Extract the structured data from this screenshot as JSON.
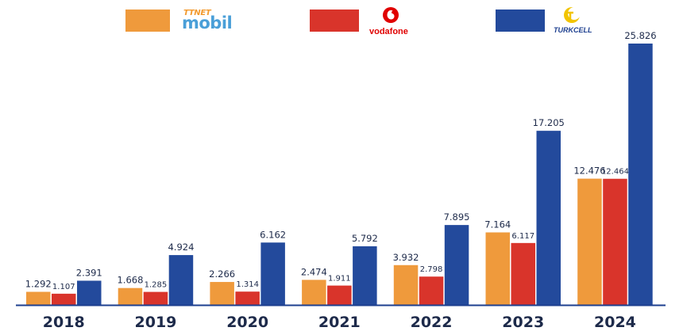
{
  "chart_data": {
    "type": "bar",
    "categories": [
      "2018",
      "2019",
      "2020",
      "2021",
      "2022",
      "2023",
      "2024"
    ],
    "series": [
      {
        "name": "TTNET mobil",
        "color": "#ef9a3c",
        "values": [
          1292,
          1668,
          2266,
          2474,
          3932,
          7164,
          12476
        ],
        "labels": [
          "1.292",
          "1.668",
          "2.266",
          "2.474",
          "3.932",
          "7.164",
          "12.476"
        ]
      },
      {
        "name": "vodafone",
        "color": "#d9342b",
        "values": [
          1107,
          1285,
          1314,
          1911,
          2798,
          6117,
          12464
        ],
        "labels": [
          "1.107",
          "1.285",
          "1.314",
          "1.911",
          "2.798",
          "6.117",
          "12.464"
        ]
      },
      {
        "name": "TURKCELL",
        "color": "#234a9c",
        "values": [
          2391,
          4924,
          6162,
          5792,
          7895,
          17205,
          25826
        ],
        "labels": [
          "2.391",
          "4.924",
          "6.162",
          "5.792",
          "7.895",
          "17.205",
          "25.826"
        ]
      }
    ],
    "ylim": [
      0,
      26500
    ],
    "grid": false,
    "legend": "top"
  },
  "legend": {
    "ttnet_small": "TTNET",
    "ttnet_big": "mobil",
    "vodafone": "vodafone",
    "turkcell": "TURKCELL"
  },
  "colors": {
    "axis": "#1d3f8f",
    "label_text": "#1d2a4a",
    "year_text": "#1d2a4a"
  }
}
